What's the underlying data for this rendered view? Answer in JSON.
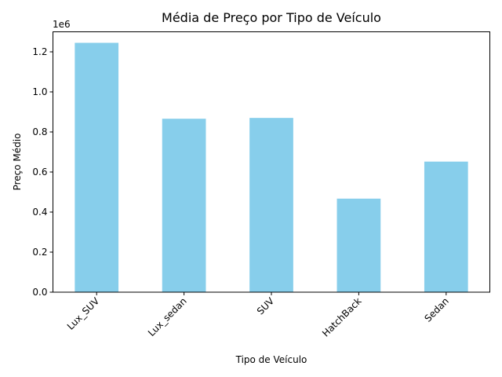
{
  "chart_data": {
    "type": "bar",
    "title": "Média de Preço por Tipo de Veículo",
    "xlabel": "Tipo de Veículo",
    "ylabel": "Preço Médio",
    "offset_label": "1e6",
    "categories": [
      "Lux_SUV",
      "Lux_sedan",
      "SUV",
      "HatchBack",
      "Sedan"
    ],
    "values": [
      1.245,
      0.866,
      0.87,
      0.467,
      0.652
    ],
    "ylim": [
      0,
      1.3
    ],
    "yticks": [
      0.0,
      0.2,
      0.4,
      0.6,
      0.8,
      1.0,
      1.2
    ],
    "ytick_labels": [
      "0.0",
      "0.2",
      "0.4",
      "0.6",
      "0.8",
      "1.0",
      "1.2"
    ],
    "bar_color": "#87ceeb",
    "grid": false,
    "legend": "none"
  }
}
